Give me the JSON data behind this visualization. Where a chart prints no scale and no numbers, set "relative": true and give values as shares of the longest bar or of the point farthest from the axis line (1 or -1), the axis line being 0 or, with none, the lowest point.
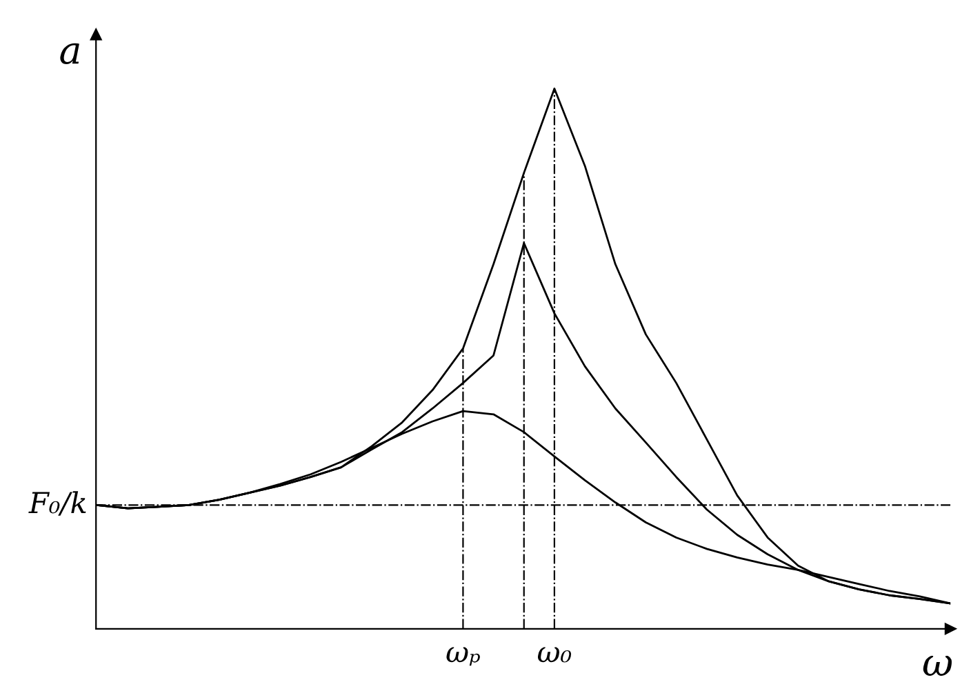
{
  "chart_data": {
    "type": "line",
    "relative": true,
    "xlabel": "ω",
    "ylabel": "a",
    "categories": [
      null,
      null,
      null,
      null,
      null,
      null,
      null,
      null,
      null,
      null,
      null,
      null,
      "ωₚ",
      null,
      null,
      "ω₀",
      null,
      null,
      null,
      null,
      null,
      null,
      null,
      null,
      null,
      null,
      null,
      null,
      null
    ],
    "series": [
      {
        "color": "#000000",
        "values": [
          0.229,
          0.223,
          0.226,
          0.229,
          0.239,
          0.252,
          0.265,
          0.281,
          0.299,
          0.338,
          0.382,
          0.442,
          0.519,
          0.675,
          0.844,
          1.0,
          0.857,
          0.675,
          0.545,
          0.455,
          0.351,
          0.247,
          0.169,
          0.117,
          0.088,
          0.073,
          0.062,
          0.055,
          0.047
        ]
      },
      {
        "color": "#000000",
        "values": [
          0.229,
          0.223,
          0.226,
          0.229,
          0.239,
          0.252,
          0.265,
          0.281,
          0.299,
          0.332,
          0.364,
          0.408,
          0.455,
          0.506,
          0.714,
          0.584,
          0.486,
          0.408,
          0.345,
          0.281,
          0.221,
          0.174,
          0.138,
          0.109,
          0.088,
          0.073,
          0.062,
          0.055,
          0.047
        ]
      },
      {
        "color": "#000000",
        "values": [
          0.229,
          0.223,
          0.226,
          0.229,
          0.239,
          0.252,
          0.268,
          0.286,
          0.309,
          0.335,
          0.361,
          0.384,
          0.403,
          0.397,
          0.364,
          0.319,
          0.275,
          0.234,
          0.197,
          0.169,
          0.148,
          0.132,
          0.119,
          0.109,
          0.096,
          0.083,
          0.07,
          0.06,
          0.047
        ]
      }
    ],
    "ref_lines": [
      {
        "axis": "y",
        "value": 0.229,
        "label": "F₀/k",
        "line_style": "dashdot"
      },
      {
        "axis": "x",
        "value": "ωₚ",
        "label": null,
        "line_style": "dashdot"
      },
      {
        "axis": "x",
        "value": "ω₀",
        "label": null,
        "line_style": "dashdot"
      }
    ],
    "legend": false,
    "marker": "none",
    "line_style": "solid"
  }
}
